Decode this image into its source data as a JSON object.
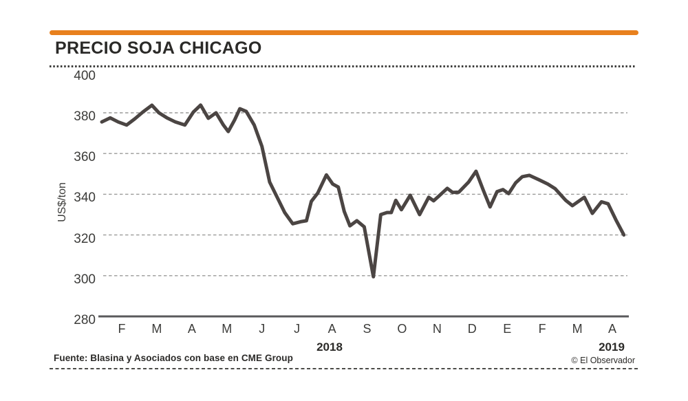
{
  "header": {
    "title": "PRECIO SOJA CHICAGO"
  },
  "colors": {
    "accent_orange": "#E8801D",
    "line": "#4B4543",
    "grid": "#9A9A98",
    "axis": "#59595B",
    "rule_dots": "#3B3B39",
    "rule_dash": "#4B4B49",
    "text_dark": "#2B2A28",
    "text_tick": "#3B3B39"
  },
  "chart_data": {
    "type": "line",
    "title": "PRECIO SOJA CHICAGO",
    "xlabel": "",
    "ylabel": "US$/ton",
    "ylim": [
      280,
      400
    ],
    "y_ticks": [
      400,
      380,
      360,
      340,
      320,
      300,
      280
    ],
    "y_gridlines": [
      380,
      360,
      340,
      320,
      300
    ],
    "grid": "dashed horizontal only",
    "legend_position": "none",
    "x_tick_labels": [
      "F",
      "M",
      "A",
      "M",
      "J",
      "J",
      "A",
      "S",
      "O",
      "N",
      "D",
      "E",
      "F",
      "M",
      "A"
    ],
    "x_year_labels": [
      "2018",
      "2019"
    ],
    "x_axis_note": "months Feb 2018 through Apr 2019; x unit below = months from Feb-2018 tick",
    "series": [
      {
        "name": "Precio soja Chicago (US$/ton)",
        "points": [
          [
            -0.57,
            375.5
          ],
          [
            -0.33,
            377.5
          ],
          [
            -0.1,
            375.5
          ],
          [
            0.14,
            374
          ],
          [
            0.37,
            377
          ],
          [
            0.61,
            380.5
          ],
          [
            0.86,
            383.7
          ],
          [
            1.06,
            380
          ],
          [
            1.29,
            377.5
          ],
          [
            1.53,
            375.5
          ],
          [
            1.8,
            374
          ],
          [
            2.04,
            380.3
          ],
          [
            2.25,
            383.8
          ],
          [
            2.47,
            377.3
          ],
          [
            2.69,
            380
          ],
          [
            2.9,
            374
          ],
          [
            3.04,
            370.8
          ],
          [
            3.22,
            376.5
          ],
          [
            3.37,
            382
          ],
          [
            3.55,
            380.7
          ],
          [
            3.78,
            374
          ],
          [
            4.0,
            363.5
          ],
          [
            4.22,
            346
          ],
          [
            4.45,
            338
          ],
          [
            4.65,
            331
          ],
          [
            4.88,
            325.5
          ],
          [
            5.1,
            326.5
          ],
          [
            5.27,
            327
          ],
          [
            5.41,
            336.5
          ],
          [
            5.59,
            340.5
          ],
          [
            5.84,
            349.5
          ],
          [
            6.02,
            345
          ],
          [
            6.18,
            343.5
          ],
          [
            6.35,
            331.5
          ],
          [
            6.51,
            324.5
          ],
          [
            6.71,
            327
          ],
          [
            6.92,
            324
          ],
          [
            7.18,
            299.5
          ],
          [
            7.39,
            330
          ],
          [
            7.57,
            331
          ],
          [
            7.69,
            331
          ],
          [
            7.82,
            337
          ],
          [
            7.98,
            332.4
          ],
          [
            8.23,
            339.5
          ],
          [
            8.5,
            330
          ],
          [
            8.76,
            338.5
          ],
          [
            8.9,
            336.8
          ],
          [
            9.03,
            338.8
          ],
          [
            9.29,
            342.9
          ],
          [
            9.44,
            340.9
          ],
          [
            9.62,
            341
          ],
          [
            9.9,
            346
          ],
          [
            10.11,
            351.3
          ],
          [
            10.31,
            342.3
          ],
          [
            10.51,
            333.8
          ],
          [
            10.71,
            341.3
          ],
          [
            10.88,
            342.3
          ],
          [
            11.04,
            340.3
          ],
          [
            11.24,
            345.6
          ],
          [
            11.43,
            348.6
          ],
          [
            11.63,
            349.3
          ],
          [
            11.92,
            347
          ],
          [
            12.16,
            345
          ],
          [
            12.37,
            342.7
          ],
          [
            12.67,
            337
          ],
          [
            12.86,
            334.4
          ],
          [
            13.2,
            338.5
          ],
          [
            13.43,
            330.6
          ],
          [
            13.69,
            336.3
          ],
          [
            13.88,
            335.3
          ],
          [
            14.1,
            327.5
          ],
          [
            14.33,
            320
          ]
        ]
      }
    ]
  },
  "footer": {
    "source": "Fuente: Blasina y Asociados con base en CME Group",
    "credit": "© El Observador"
  }
}
